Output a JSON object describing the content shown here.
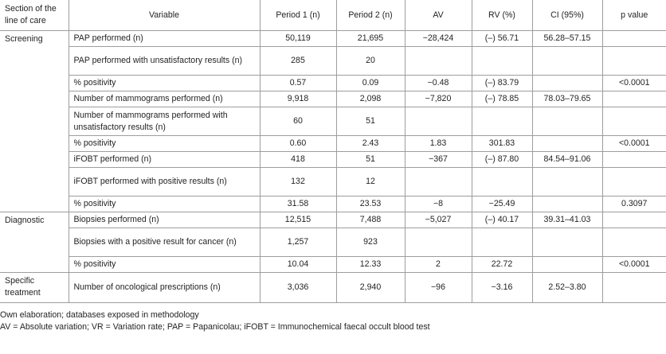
{
  "header": {
    "section": "Section of the line of care",
    "variable": "Variable",
    "period1": "Period 1 (n)",
    "period2": "Period 2 (n)",
    "av": "AV",
    "rv": "RV (%)",
    "ci": "CI (95%)",
    "pvalue": "p value"
  },
  "sections": [
    {
      "name": "Screening",
      "rows": [
        {
          "variable": "PAP performed (n)",
          "p1": "50,119",
          "p2": "21,695",
          "av": "−28,424",
          "rv": "(–) 56.71",
          "ci": "56.28–57.15",
          "p": ""
        },
        {
          "variable": "PAP performed with unsatisfactory results (n)",
          "p1": "285",
          "p2": "20",
          "av": "",
          "rv": "",
          "ci": "",
          "p": ""
        },
        {
          "variable": "% positivity",
          "p1": "0.57",
          "p2": "0.09",
          "av": "−0.48",
          "rv": "(–) 83.79",
          "ci": "",
          "p": "<0.0001"
        },
        {
          "variable": "Number of mammograms performed (n)",
          "p1": "9,918",
          "p2": "2,098",
          "av": "−7,820",
          "rv": "(–) 78.85",
          "ci": "78.03–79.65",
          "p": ""
        },
        {
          "variable": "Number of mammograms performed with unsatisfactory results (n)",
          "p1": "60",
          "p2": "51",
          "av": "",
          "rv": "",
          "ci": "",
          "p": ""
        },
        {
          "variable": "% positivity",
          "p1": "0.60",
          "p2": "2.43",
          "av": "1.83",
          "rv": "301.83",
          "ci": "",
          "p": "<0.0001"
        },
        {
          "variable": "iFOBT performed (n)",
          "p1": "418",
          "p2": "51",
          "av": "−367",
          "rv": "(–) 87.80",
          "ci": "84.54–91.06",
          "p": ""
        },
        {
          "variable": "iFOBT performed with positive results (n)",
          "p1": "132",
          "p2": "12",
          "av": "",
          "rv": "",
          "ci": "",
          "p": ""
        },
        {
          "variable": "% positivity",
          "p1": "31.58",
          "p2": "23.53",
          "av": "−8",
          "rv": "−25.49",
          "ci": "",
          "p": "0.3097"
        }
      ]
    },
    {
      "name": "Diagnostic",
      "rows": [
        {
          "variable": "Biopsies performed (n)",
          "p1": "12,515",
          "p2": "7,488",
          "av": "−5,027",
          "rv": "(–) 40.17",
          "ci": "39.31–41.03",
          "p": ""
        },
        {
          "variable": "Biopsies with a positive result for cancer (n)",
          "p1": "1,257",
          "p2": "923",
          "av": "",
          "rv": "",
          "ci": "",
          "p": ""
        },
        {
          "variable": "% positivity",
          "p1": "10.04",
          "p2": "12.33",
          "av": "2",
          "rv": "22.72",
          "ci": "",
          "p": "<0.0001"
        }
      ]
    },
    {
      "name": "Specific treatment",
      "rows": [
        {
          "variable": "Number of oncological prescriptions (n)",
          "p1": "3,036",
          "p2": "2,940",
          "av": "−96",
          "rv": "−3.16",
          "ci": "2.52–3.80",
          "p": ""
        }
      ]
    }
  ],
  "footnotes": [
    "Own elaboration; databases exposed in methodology",
    "AV = Absolute variation; VR = Variation rate; PAP = Papanicolau; iFOBT = Immunochemical faecal occult blood test"
  ]
}
